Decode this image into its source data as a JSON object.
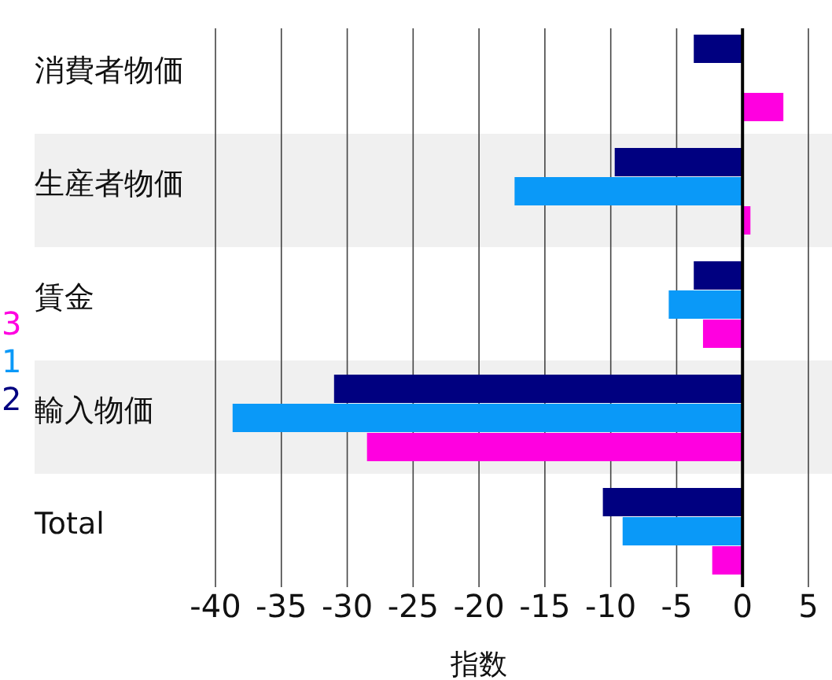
{
  "chart_data": {
    "type": "bar",
    "orientation": "horizontal",
    "xlabel": "指数",
    "categories": [
      "消費者物価",
      "生産者物価",
      "賃金",
      "輸入物価",
      "Total"
    ],
    "series": [
      {
        "name": "2",
        "color": "#000080",
        "values": [
          -3.7,
          -9.7,
          -3.7,
          -31.0,
          -10.6
        ]
      },
      {
        "name": "1",
        "color": "#0a99f8",
        "values": [
          0,
          -17.3,
          -5.6,
          -38.7,
          -9.1
        ]
      },
      {
        "name": "3",
        "color": "#ff00e0",
        "values": [
          3.1,
          0.6,
          -3.0,
          -28.5,
          -2.3
        ]
      }
    ],
    "xlim": [
      -40,
      5
    ],
    "xticks": [
      -40,
      -35,
      -30,
      -25,
      -20,
      -15,
      -10,
      -5,
      0,
      5
    ],
    "grid": "x",
    "legend": "left"
  }
}
